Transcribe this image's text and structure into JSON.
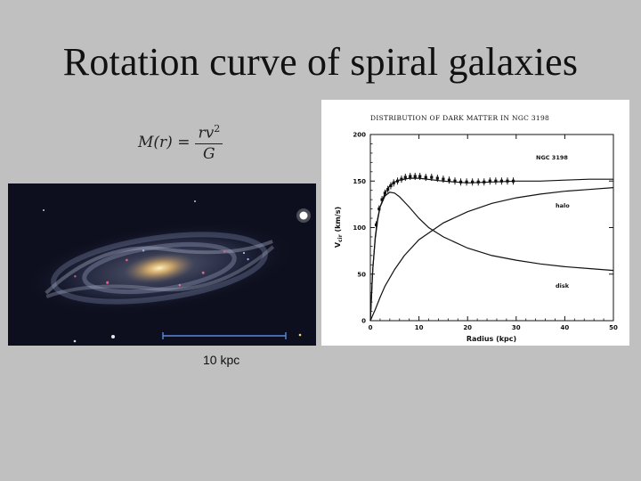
{
  "slide": {
    "title": "Rotation curve of spiral galaxies",
    "scale_label": "10 kpc"
  },
  "formula": {
    "lhs": "M(r) =",
    "numerator": "rv",
    "numerator_exp": "2",
    "denominator": "G"
  },
  "chart_data": {
    "type": "line",
    "title": "DISTRIBUTION OF DARK MATTER IN NGC 3198",
    "xlabel": "Radius    (kpc)",
    "ylabel": "V",
    "ylabel_sub": "cir",
    "ylabel_units": " (km/s)",
    "xlim": [
      0,
      50
    ],
    "ylim": [
      0,
      200
    ],
    "xticks": [
      0,
      10,
      20,
      30,
      40,
      50
    ],
    "yticks": [
      0,
      50,
      100,
      150,
      200
    ],
    "annotations": {
      "galaxy": "NGC 3198",
      "halo": "halo",
      "disk": "disk"
    },
    "series": [
      {
        "key": "total",
        "x": [
          0,
          0.5,
          1,
          1.5,
          2,
          3,
          4,
          5,
          6,
          8,
          10,
          15,
          20,
          25,
          30,
          35,
          40,
          45,
          50
        ],
        "y": [
          0,
          55,
          88,
          108,
          122,
          137,
          145,
          149,
          151,
          153,
          153,
          150,
          148,
          149,
          150,
          150,
          151,
          152,
          152
        ]
      },
      {
        "key": "disk",
        "x": [
          0,
          0.5,
          1,
          1.5,
          2,
          3,
          4,
          5,
          6,
          8,
          10,
          12,
          15,
          20,
          25,
          30,
          35,
          40,
          45,
          50
        ],
        "y": [
          0,
          55,
          90,
          110,
          122,
          134,
          138,
          137,
          133,
          122,
          110,
          100,
          90,
          78,
          70,
          65,
          61,
          58,
          56,
          54
        ]
      },
      {
        "key": "halo",
        "x": [
          0,
          1,
          2,
          3,
          5,
          7,
          10,
          15,
          20,
          25,
          30,
          35,
          40,
          45,
          50
        ],
        "y": [
          0,
          12,
          25,
          37,
          55,
          70,
          87,
          105,
          117,
          126,
          132,
          136,
          139,
          141,
          143
        ]
      },
      {
        "key": "observed",
        "x": [
          1.2,
          1.8,
          2.4,
          3.0,
          3.6,
          4.2,
          4.8,
          5.6,
          6.4,
          7.2,
          8.2,
          9.2,
          10.2,
          11.4,
          12.6,
          13.8,
          15,
          16.2,
          17.4,
          18.6,
          19.8,
          21,
          22.2,
          23.4,
          24.6,
          25.8,
          27,
          28.2,
          29.4
        ],
        "y": [
          103,
          120,
          130,
          137,
          141,
          145,
          148,
          150,
          152,
          154,
          155,
          155,
          155,
          154,
          154,
          153,
          152,
          151,
          150,
          149,
          149,
          149,
          149,
          149,
          150,
          150,
          150,
          150,
          150
        ]
      }
    ]
  }
}
